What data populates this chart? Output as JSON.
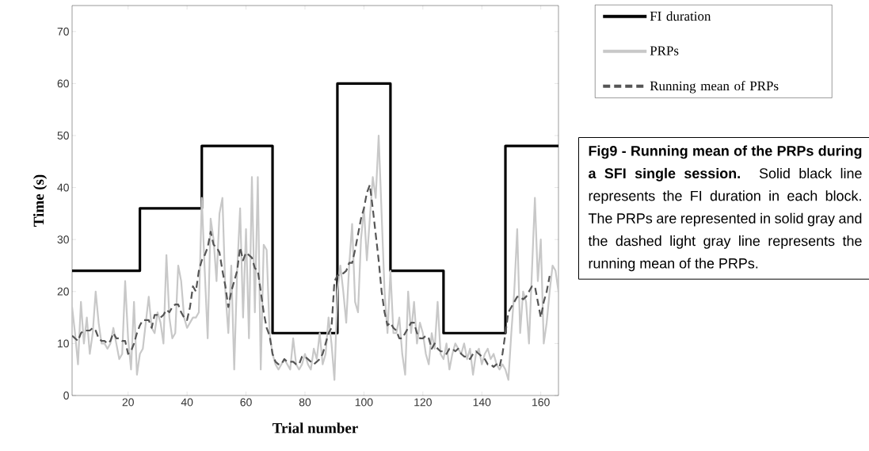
{
  "chart_data": {
    "type": "line",
    "xlabel": "Trial number",
    "ylabel": "Time (s)",
    "xlim": [
      1,
      166
    ],
    "ylim": [
      0,
      75
    ],
    "xticks": [
      20,
      40,
      60,
      80,
      100,
      120,
      140,
      160
    ],
    "yticks": [
      0,
      10,
      20,
      30,
      40,
      50,
      60,
      70
    ],
    "legend": "top right",
    "grid": false,
    "annotations": [
      "**Fig9 - Running mean of the PRPs during a SFI single session.** Solid black line represents the FI duration in each block. The PRPs are represented in solid gray and the dashed light gray line represents the running mean of the PRPs."
    ],
    "series": [
      {
        "name": "FI duration",
        "type": "step",
        "color": "#000000",
        "line_style": "solid",
        "x": [
          1,
          24,
          45,
          69,
          91,
          109,
          127,
          148,
          166
        ],
        "values": [
          24,
          36,
          48,
          12,
          60,
          24,
          12,
          48,
          48
        ]
      },
      {
        "name": "PRPs",
        "type": "line",
        "color": "#c8c8c8",
        "line_style": "solid",
        "x": [
          1,
          2,
          3,
          4,
          5,
          6,
          7,
          8,
          9,
          10,
          11,
          12,
          13,
          14,
          15,
          16,
          17,
          18,
          19,
          20,
          21,
          22,
          23,
          24,
          25,
          26,
          27,
          28,
          29,
          30,
          31,
          32,
          33,
          34,
          35,
          36,
          37,
          38,
          39,
          40,
          41,
          42,
          43,
          44,
          45,
          46,
          47,
          48,
          49,
          50,
          51,
          52,
          53,
          54,
          55,
          56,
          57,
          58,
          59,
          60,
          61,
          62,
          63,
          64,
          65,
          66,
          67,
          68,
          69,
          70,
          71,
          72,
          73,
          74,
          75,
          76,
          77,
          78,
          79,
          80,
          81,
          82,
          83,
          84,
          85,
          86,
          87,
          88,
          89,
          90,
          91,
          92,
          93,
          94,
          95,
          96,
          97,
          98,
          99,
          100,
          101,
          102,
          103,
          104,
          105,
          106,
          107,
          108,
          109,
          110,
          111,
          112,
          113,
          114,
          115,
          116,
          117,
          118,
          119,
          120,
          121,
          122,
          123,
          124,
          125,
          126,
          127,
          128,
          129,
          130,
          131,
          132,
          133,
          134,
          135,
          136,
          137,
          138,
          139,
          140,
          141,
          142,
          143,
          144,
          145,
          146,
          147,
          148,
          149,
          150,
          151,
          152,
          153,
          154,
          155,
          156,
          157,
          158,
          159,
          160,
          161,
          162,
          163,
          164,
          165,
          166
        ],
        "values": [
          17,
          12,
          6,
          18,
          10,
          15,
          8,
          12,
          20,
          14,
          10,
          10,
          9,
          10,
          13,
          10,
          7,
          8,
          22,
          11,
          5,
          18,
          4,
          8,
          9,
          14,
          19,
          13,
          12,
          16,
          14,
          10,
          27,
          15,
          11,
          12,
          25,
          22,
          15,
          13,
          14,
          15,
          15,
          16,
          38,
          24,
          11,
          34,
          30,
          22,
          35,
          38,
          20,
          12,
          25,
          5,
          24,
          36,
          15,
          32,
          11,
          42,
          16,
          42,
          5,
          29,
          28,
          12,
          8,
          6,
          5,
          6,
          7,
          6,
          5,
          11,
          6,
          5,
          6,
          8,
          6,
          5,
          9,
          7,
          12,
          6,
          8,
          15,
          10,
          3,
          20,
          25,
          20,
          14,
          25,
          33,
          18,
          16,
          30,
          36,
          26,
          34,
          42,
          38,
          50,
          35,
          20,
          12,
          24,
          12,
          12,
          15,
          8,
          4,
          20,
          12,
          18,
          10,
          14,
          12,
          8,
          6,
          12,
          9,
          18,
          8,
          7,
          10,
          5,
          8,
          10,
          9,
          8,
          10,
          7,
          9,
          4,
          8,
          9,
          6,
          8,
          9,
          7,
          8,
          6,
          5,
          6,
          5,
          3,
          12,
          20,
          32,
          12,
          20,
          18,
          10,
          24,
          38,
          22,
          30,
          10,
          14,
          20,
          25,
          24,
          20
        ]
      },
      {
        "name": "Running mean of PRPs",
        "type": "line",
        "color": "#555555",
        "line_style": "dashed",
        "x": [
          1,
          2,
          3,
          4,
          5,
          6,
          7,
          8,
          9,
          10,
          11,
          12,
          13,
          14,
          15,
          16,
          17,
          18,
          19,
          20,
          21,
          22,
          23,
          24,
          25,
          26,
          27,
          28,
          29,
          30,
          31,
          32,
          33,
          34,
          35,
          36,
          37,
          38,
          39,
          40,
          41,
          42,
          43,
          44,
          45,
          46,
          47,
          48,
          49,
          50,
          51,
          52,
          53,
          54,
          55,
          56,
          57,
          58,
          59,
          60,
          61,
          62,
          63,
          64,
          65,
          66,
          67,
          68,
          69,
          70,
          71,
          72,
          73,
          74,
          75,
          76,
          77,
          78,
          79,
          80,
          81,
          82,
          83,
          84,
          85,
          86,
          87,
          88,
          89,
          90,
          91,
          92,
          93,
          94,
          95,
          96,
          97,
          98,
          99,
          100,
          101,
          102,
          103,
          104,
          105,
          106,
          107,
          108,
          109,
          110,
          111,
          112,
          113,
          114,
          115,
          116,
          117,
          118,
          119,
          120,
          121,
          122,
          123,
          124,
          125,
          126,
          127,
          128,
          129,
          130,
          131,
          132,
          133,
          134,
          135,
          136,
          137,
          138,
          139,
          140,
          141,
          142,
          143,
          144,
          145,
          146,
          147,
          148,
          149,
          150,
          151,
          152,
          153,
          154,
          155,
          156,
          157,
          158,
          159,
          160,
          161,
          162,
          163
        ],
        "values": [
          11.5,
          11,
          10.5,
          12,
          12.5,
          12.5,
          12.5,
          13,
          12.5,
          11,
          10.5,
          10.5,
          10,
          10.5,
          12,
          11,
          11,
          10.5,
          10.5,
          8,
          8.5,
          10,
          12,
          13.5,
          14.5,
          14.5,
          14.5,
          13,
          15.5,
          15.5,
          15,
          15.5,
          16.5,
          16,
          17,
          17.5,
          17.5,
          16,
          15,
          14.5,
          17,
          21,
          20,
          24,
          26,
          27,
          28.5,
          31.5,
          29,
          28.5,
          27.5,
          24,
          21,
          17,
          20,
          22,
          24,
          28.5,
          26,
          27.5,
          27,
          26.5,
          24.5,
          24,
          20,
          16,
          13,
          11.5,
          8,
          6.5,
          6,
          6,
          7,
          6.5,
          6.5,
          6.5,
          6,
          6,
          7.5,
          7.5,
          7,
          6.5,
          6,
          6.5,
          7,
          8,
          10,
          12,
          13,
          22,
          23,
          23.5,
          23.5,
          24,
          25.5,
          25.5,
          28,
          31,
          34,
          36,
          39,
          40.5,
          36,
          31,
          26,
          20,
          16,
          13.5,
          14,
          13,
          12.5,
          11,
          11,
          12,
          13,
          14,
          14,
          12,
          11,
          11,
          11.5,
          11,
          9,
          10,
          9,
          8.5,
          8.5,
          8,
          9,
          9,
          8.5,
          9,
          8,
          7.5,
          7.5,
          7,
          8,
          8.5,
          8,
          7.5,
          7,
          6,
          6,
          5.5,
          6,
          5.5,
          8,
          12,
          16,
          17,
          18,
          19,
          19,
          18.5,
          19,
          20,
          21,
          21,
          18,
          15,
          18,
          20,
          23
        ]
      }
    ]
  }
}
